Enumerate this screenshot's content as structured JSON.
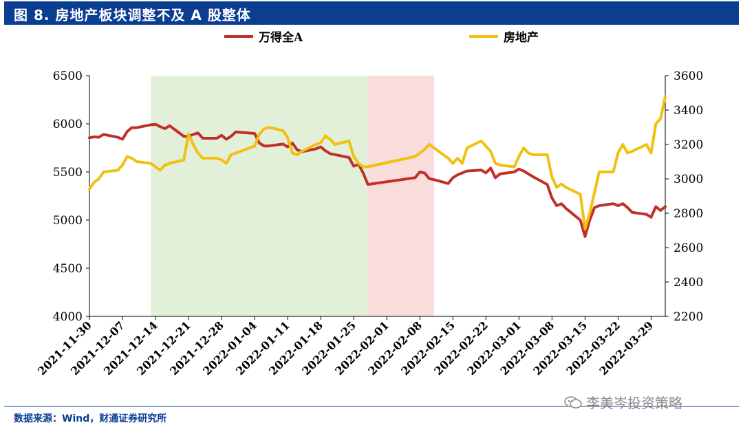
{
  "header": {
    "title": "图 8. 房地产板块调整不及 A 股整体"
  },
  "footer": {
    "source": "数据来源：Wind，财通证券研究所",
    "watermark": "李美岑投资策略"
  },
  "colors": {
    "title_bg": "#0b3d91",
    "wind_a": "#c0302b",
    "real_estate": "#f2c010",
    "green_band": "#e2efd9",
    "pink_band": "#f9dcdc"
  },
  "chart_data": {
    "type": "line",
    "title": "房地产板块调整不及 A 股整体",
    "x_start": "2021-11-30",
    "x_end": "2022-04-01",
    "x_tick_labels": [
      "2021-11-30",
      "2021-12-07",
      "2021-12-14",
      "2021-12-21",
      "2021-12-28",
      "2022-01-04",
      "2022-01-11",
      "2022-01-18",
      "2022-01-25",
      "2022-02-01",
      "2022-02-08",
      "2022-02-15",
      "2022-02-22",
      "2022-03-01",
      "2022-03-08",
      "2022-03-15",
      "2022-03-22",
      "2022-03-29"
    ],
    "y_left": {
      "min": 4000,
      "max": 6500,
      "ticks": [
        4000,
        4500,
        5000,
        5500,
        6000,
        6500
      ]
    },
    "y_right": {
      "min": 2200,
      "max": 3600,
      "ticks": [
        2200,
        2400,
        2600,
        2800,
        3000,
        3200,
        3400,
        3600
      ]
    },
    "shaded_ranges": [
      {
        "start": "2021-12-13",
        "end": "2022-01-28",
        "color": "#e2efd9"
      },
      {
        "start": "2022-01-28",
        "end": "2022-02-11",
        "color": "#f9dcdc"
      }
    ],
    "series": [
      {
        "name": "万得全A",
        "axis": "left",
        "color": "#c0302b",
        "points": [
          [
            "2021-11-30",
            5855
          ],
          [
            "2021-12-01",
            5865
          ],
          [
            "2021-12-02",
            5860
          ],
          [
            "2021-12-03",
            5890
          ],
          [
            "2021-12-06",
            5860
          ],
          [
            "2021-12-07",
            5840
          ],
          [
            "2021-12-08",
            5920
          ],
          [
            "2021-12-09",
            5960
          ],
          [
            "2021-12-10",
            5960
          ],
          [
            "2021-12-13",
            5990
          ],
          [
            "2021-12-14",
            5995
          ],
          [
            "2021-12-15",
            5970
          ],
          [
            "2021-12-16",
            5950
          ],
          [
            "2021-12-17",
            5980
          ],
          [
            "2021-12-20",
            5870
          ],
          [
            "2021-12-21",
            5870
          ],
          [
            "2021-12-22",
            5890
          ],
          [
            "2021-12-23",
            5905
          ],
          [
            "2021-12-24",
            5850
          ],
          [
            "2021-12-27",
            5850
          ],
          [
            "2021-12-28",
            5880
          ],
          [
            "2021-12-29",
            5840
          ],
          [
            "2021-12-30",
            5870
          ],
          [
            "2021-12-31",
            5915
          ],
          [
            "2022-01-04",
            5900
          ],
          [
            "2022-01-05",
            5800
          ],
          [
            "2022-01-06",
            5770
          ],
          [
            "2022-01-07",
            5770
          ],
          [
            "2022-01-10",
            5790
          ],
          [
            "2022-01-11",
            5760
          ],
          [
            "2022-01-12",
            5800
          ],
          [
            "2022-01-13",
            5730
          ],
          [
            "2022-01-14",
            5710
          ],
          [
            "2022-01-17",
            5740
          ],
          [
            "2022-01-18",
            5760
          ],
          [
            "2022-01-19",
            5720
          ],
          [
            "2022-01-20",
            5690
          ],
          [
            "2022-01-21",
            5680
          ],
          [
            "2022-01-24",
            5650
          ],
          [
            "2022-01-25",
            5560
          ],
          [
            "2022-01-26",
            5580
          ],
          [
            "2022-01-27",
            5490
          ],
          [
            "2022-01-28",
            5370
          ],
          [
            "2022-02-07",
            5440
          ],
          [
            "2022-02-08",
            5500
          ],
          [
            "2022-02-09",
            5490
          ],
          [
            "2022-02-10",
            5430
          ],
          [
            "2022-02-11",
            5420
          ],
          [
            "2022-02-14",
            5380
          ],
          [
            "2022-02-15",
            5440
          ],
          [
            "2022-02-16",
            5470
          ],
          [
            "2022-02-17",
            5490
          ],
          [
            "2022-02-18",
            5510
          ],
          [
            "2022-02-21",
            5520
          ],
          [
            "2022-02-22",
            5490
          ],
          [
            "2022-02-23",
            5540
          ],
          [
            "2022-02-24",
            5440
          ],
          [
            "2022-02-25",
            5480
          ],
          [
            "2022-02-28",
            5500
          ],
          [
            "2022-03-01",
            5530
          ],
          [
            "2022-03-02",
            5510
          ],
          [
            "2022-03-03",
            5480
          ],
          [
            "2022-03-04",
            5450
          ],
          [
            "2022-03-07",
            5370
          ],
          [
            "2022-03-08",
            5230
          ],
          [
            "2022-03-09",
            5150
          ],
          [
            "2022-03-10",
            5170
          ],
          [
            "2022-03-11",
            5120
          ],
          [
            "2022-03-14",
            5000
          ],
          [
            "2022-03-15",
            4830
          ],
          [
            "2022-03-16",
            5000
          ],
          [
            "2022-03-17",
            5130
          ],
          [
            "2022-03-18",
            5150
          ],
          [
            "2022-03-21",
            5170
          ],
          [
            "2022-03-22",
            5150
          ],
          [
            "2022-03-23",
            5170
          ],
          [
            "2022-03-24",
            5130
          ],
          [
            "2022-03-25",
            5080
          ],
          [
            "2022-03-28",
            5060
          ],
          [
            "2022-03-29",
            5030
          ],
          [
            "2022-03-30",
            5140
          ],
          [
            "2022-03-31",
            5100
          ],
          [
            "2022-04-01",
            5140
          ]
        ]
      },
      {
        "name": "房地产",
        "axis": "right",
        "color": "#f2c010",
        "points": [
          [
            "2021-11-30",
            2940
          ],
          [
            "2021-12-01",
            2980
          ],
          [
            "2021-12-02",
            3000
          ],
          [
            "2021-12-03",
            3040
          ],
          [
            "2021-12-06",
            3050
          ],
          [
            "2021-12-07",
            3080
          ],
          [
            "2021-12-08",
            3130
          ],
          [
            "2021-12-09",
            3120
          ],
          [
            "2021-12-10",
            3100
          ],
          [
            "2021-12-13",
            3090
          ],
          [
            "2021-12-14",
            3070
          ],
          [
            "2021-12-15",
            3050
          ],
          [
            "2021-12-16",
            3080
          ],
          [
            "2021-12-17",
            3090
          ],
          [
            "2021-12-20",
            3110
          ],
          [
            "2021-12-21",
            3260
          ],
          [
            "2021-12-22",
            3200
          ],
          [
            "2021-12-23",
            3150
          ],
          [
            "2021-12-24",
            3120
          ],
          [
            "2021-12-27",
            3120
          ],
          [
            "2021-12-28",
            3110
          ],
          [
            "2021-12-29",
            3090
          ],
          [
            "2021-12-30",
            3140
          ],
          [
            "2021-12-31",
            3150
          ],
          [
            "2022-01-04",
            3190
          ],
          [
            "2022-01-05",
            3260
          ],
          [
            "2022-01-06",
            3290
          ],
          [
            "2022-01-07",
            3300
          ],
          [
            "2022-01-10",
            3280
          ],
          [
            "2022-01-11",
            3240
          ],
          [
            "2022-01-12",
            3150
          ],
          [
            "2022-01-13",
            3140
          ],
          [
            "2022-01-14",
            3160
          ],
          [
            "2022-01-17",
            3200
          ],
          [
            "2022-01-18",
            3210
          ],
          [
            "2022-01-19",
            3250
          ],
          [
            "2022-01-20",
            3230
          ],
          [
            "2022-01-21",
            3200
          ],
          [
            "2022-01-24",
            3220
          ],
          [
            "2022-01-25",
            3130
          ],
          [
            "2022-01-26",
            3090
          ],
          [
            "2022-01-27",
            3070
          ],
          [
            "2022-01-28",
            3070
          ],
          [
            "2022-02-07",
            3130
          ],
          [
            "2022-02-08",
            3150
          ],
          [
            "2022-02-09",
            3170
          ],
          [
            "2022-02-10",
            3200
          ],
          [
            "2022-02-11",
            3180
          ],
          [
            "2022-02-14",
            3120
          ],
          [
            "2022-02-15",
            3090
          ],
          [
            "2022-02-16",
            3120
          ],
          [
            "2022-02-17",
            3090
          ],
          [
            "2022-02-18",
            3180
          ],
          [
            "2022-02-21",
            3220
          ],
          [
            "2022-02-22",
            3190
          ],
          [
            "2022-02-23",
            3160
          ],
          [
            "2022-02-24",
            3090
          ],
          [
            "2022-02-25",
            3080
          ],
          [
            "2022-02-28",
            3070
          ],
          [
            "2022-03-01",
            3130
          ],
          [
            "2022-03-02",
            3180
          ],
          [
            "2022-03-03",
            3150
          ],
          [
            "2022-03-04",
            3140
          ],
          [
            "2022-03-07",
            3140
          ],
          [
            "2022-03-08",
            3010
          ],
          [
            "2022-03-09",
            2950
          ],
          [
            "2022-03-10",
            2970
          ],
          [
            "2022-03-11",
            2950
          ],
          [
            "2022-03-14",
            2910
          ],
          [
            "2022-03-15",
            2710
          ],
          [
            "2022-03-16",
            2800
          ],
          [
            "2022-03-17",
            2920
          ],
          [
            "2022-03-18",
            3040
          ],
          [
            "2022-03-21",
            3040
          ],
          [
            "2022-03-22",
            3150
          ],
          [
            "2022-03-23",
            3200
          ],
          [
            "2022-03-24",
            3150
          ],
          [
            "2022-03-25",
            3160
          ],
          [
            "2022-03-28",
            3200
          ],
          [
            "2022-03-29",
            3150
          ],
          [
            "2022-03-30",
            3320
          ],
          [
            "2022-03-31",
            3350
          ],
          [
            "2022-04-01",
            3480
          ]
        ]
      }
    ]
  }
}
